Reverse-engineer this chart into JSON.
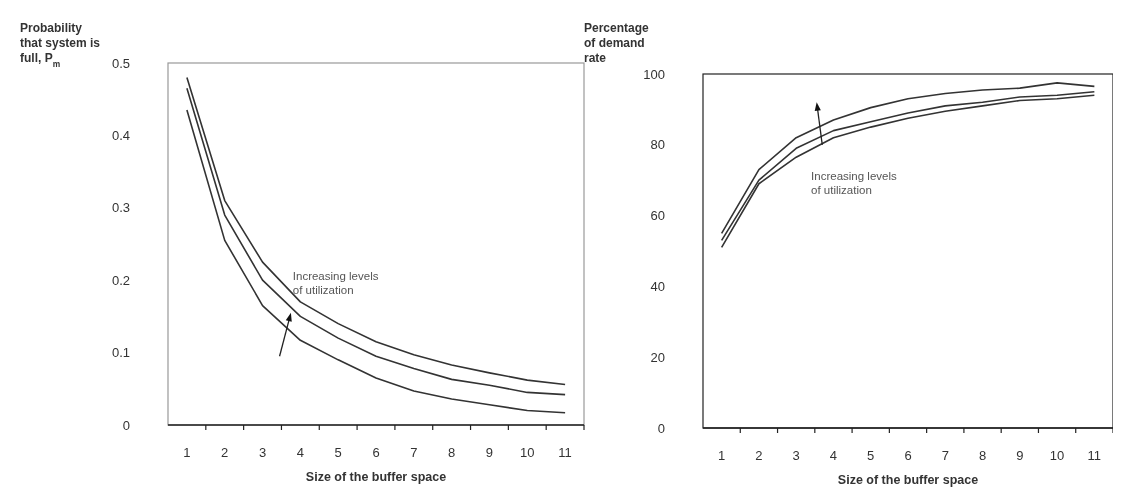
{
  "chart_data": [
    {
      "type": "line",
      "ylabel": "Probability that system is full, P$_{m}$",
      "xlabel": "Size of the  buffer space",
      "categories": [
        "1",
        "2",
        "3",
        "4",
        "5",
        "6",
        "7",
        "8",
        "9",
        "10",
        "11"
      ],
      "ylim": [
        0,
        0.5
      ],
      "yticks": [
        {
          "value": 0,
          "label": "0"
        },
        0.1,
        0.2,
        0.3,
        0.4,
        0.5
      ],
      "grid": false,
      "line_style": "solid",
      "annotations": [
        "Increasing levels of utilization"
      ],
      "series": [
        {
          "color": "#333333",
          "values": [
            0.48,
            0.31,
            0.225,
            0.17,
            0.14,
            0.115,
            0.097,
            0.083,
            0.072,
            0.062,
            0.056
          ]
        },
        {
          "color": "#333333",
          "values": [
            0.465,
            0.29,
            0.2,
            0.15,
            0.12,
            0.095,
            0.078,
            0.063,
            0.055,
            0.045,
            0.042
          ]
        },
        {
          "color": "#333333",
          "values": [
            0.435,
            0.255,
            0.165,
            0.117,
            0.09,
            0.065,
            0.047,
            0.036,
            0.028,
            0.02,
            0.017
          ]
        }
      ]
    },
    {
      "type": "line",
      "ylabel": "Percentage of demand rate",
      "xlabel": "Size of the  buffer space",
      "categories": [
        "1",
        "2",
        "3",
        "4",
        "5",
        "6",
        "7",
        "8",
        "9",
        "10",
        "11"
      ],
      "ylim": [
        0,
        100
      ],
      "yticks": [
        0,
        20,
        40,
        60,
        80,
        100
      ],
      "grid": false,
      "line_style": "solid",
      "annotations": [
        "Increasing levels of utilization"
      ],
      "series": [
        {
          "color": "#333333",
          "values": [
            55,
            73,
            82,
            87,
            90.5,
            93,
            94.5,
            95.5,
            96,
            97.5,
            96.5
          ]
        },
        {
          "color": "#333333",
          "values": [
            53,
            70,
            79,
            84,
            86.5,
            89,
            91,
            92,
            93.5,
            94,
            95
          ]
        },
        {
          "color": "#333333",
          "values": [
            51,
            69,
            76.5,
            82,
            85,
            87.5,
            89.5,
            91,
            92.5,
            93,
            94
          ]
        }
      ]
    }
  ]
}
